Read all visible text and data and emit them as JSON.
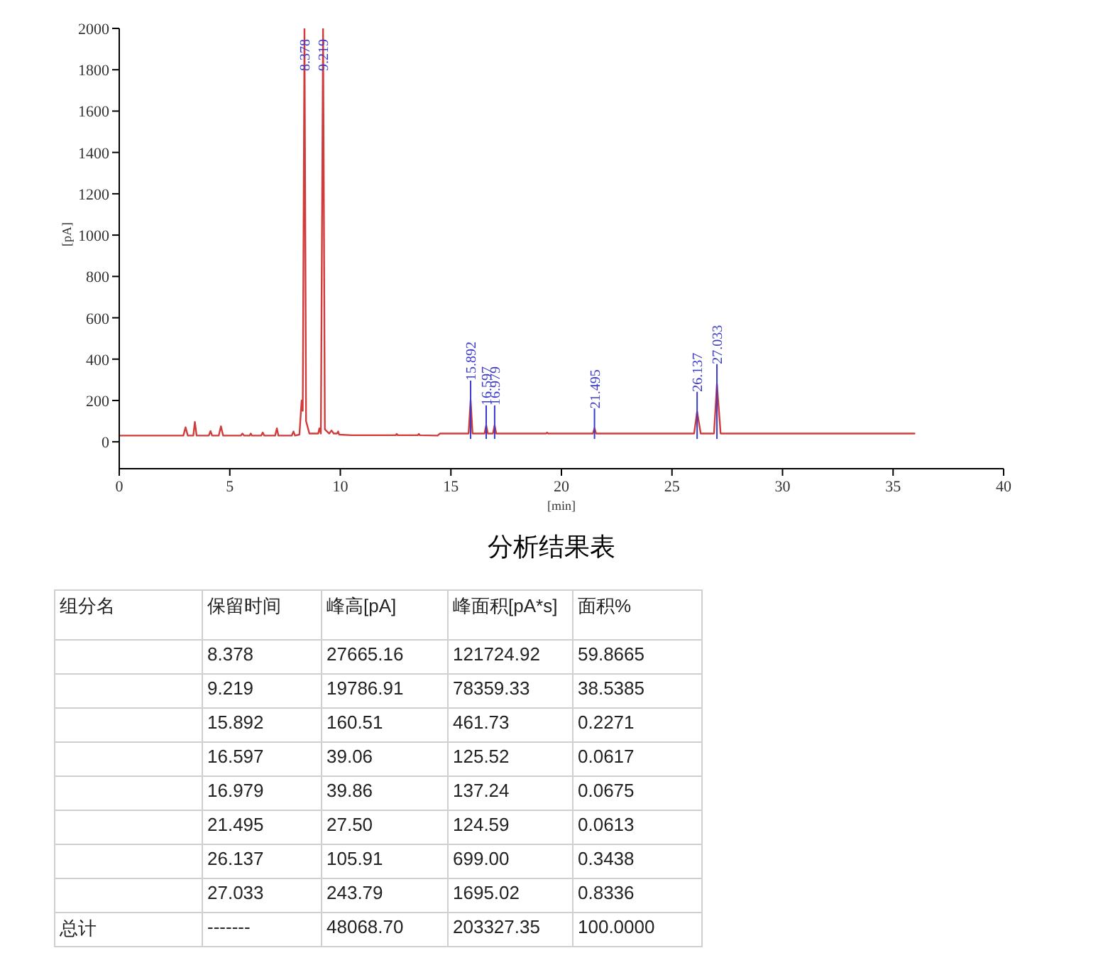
{
  "chart_data": [
    {
      "type": "line",
      "xlabel": "[min]",
      "ylabel": "[pA]",
      "xlim": [
        0,
        40
      ],
      "ylim": [
        -130,
        2000
      ],
      "xticks": [
        0,
        5,
        10,
        15,
        20,
        25,
        30,
        35,
        40
      ],
      "yticks": [
        0,
        200,
        400,
        600,
        800,
        1000,
        1200,
        1400,
        1600,
        1800,
        2000
      ],
      "grid": false,
      "marker": "none",
      "line_style": "solid",
      "series": [
        {
          "color": "#d03c3c",
          "x": [
            0,
            2.9,
            3.0,
            3.1,
            3.35,
            3.42,
            3.5,
            4.05,
            4.13,
            4.2,
            4.5,
            4.6,
            4.7,
            5.5,
            5.57,
            5.65,
            5.9,
            5.95,
            6.0,
            6.42,
            6.49,
            6.56,
            7.05,
            7.13,
            7.2,
            7.8,
            7.88,
            7.95,
            8.15,
            8.25,
            8.3,
            8.378,
            8.45,
            8.6,
            9.0,
            9.05,
            9.12,
            9.219,
            9.3,
            9.5,
            9.6,
            9.7,
            9.85,
            9.9,
            9.95,
            10.5,
            12.5,
            12.55,
            12.6,
            13.5,
            13.55,
            13.6,
            14.4,
            14.5,
            15.8,
            15.892,
            15.98,
            16.52,
            16.597,
            16.67,
            16.9,
            16.979,
            17.05,
            19.3,
            19.35,
            19.4,
            21.42,
            21.495,
            21.57,
            26.0,
            26.137,
            26.3,
            26.9,
            27.033,
            27.2,
            36
          ],
          "values": [
            30,
            30,
            70,
            30,
            30,
            96,
            30,
            30,
            52,
            30,
            30,
            75,
            30,
            30,
            40,
            30,
            30,
            40,
            30,
            30,
            45,
            30,
            30,
            65,
            30,
            30,
            50,
            30,
            35,
            200,
            150,
            2000,
            100,
            40,
            40,
            65,
            40,
            2000,
            60,
            40,
            55,
            40,
            40,
            50,
            35,
            32,
            32,
            38,
            32,
            32,
            38,
            32,
            30,
            40,
            40,
            200,
            40,
            40,
            80,
            40,
            40,
            80,
            40,
            40,
            45,
            40,
            40,
            65,
            40,
            40,
            146,
            40,
            40,
            280,
            40,
            40
          ]
        }
      ],
      "annotations": [
        {
          "text": "8.378",
          "x": 8.378,
          "y": 2000
        },
        {
          "text": "9.219",
          "x": 9.219,
          "y": 2000
        },
        {
          "text": "15.892",
          "x": 15.892,
          "y": 200
        },
        {
          "text": "16.597",
          "x": 16.597,
          "y": 80
        },
        {
          "text": "16.979",
          "x": 16.979,
          "y": 80
        },
        {
          "text": "21.495",
          "x": 21.495,
          "y": 65
        },
        {
          "text": "26.137",
          "x": 26.137,
          "y": 146
        },
        {
          "text": "27.033",
          "x": 27.033,
          "y": 280
        }
      ]
    },
    {
      "type": "other",
      "title": "分析结果表",
      "annotations": [
        "组分名",
        "保留时间",
        "峰高[pA]",
        "峰面积[pA*s]",
        "面积%",
        null,
        "8.378",
        "27665.16",
        "121724.92",
        "59.8665",
        null,
        "9.219",
        "19786.91",
        "78359.33",
        "38.5385",
        null,
        "15.892",
        "160.51",
        "461.73",
        "0.2271",
        null,
        "16.597",
        "39.06",
        "125.52",
        "0.0617",
        null,
        "16.979",
        "39.86",
        "137.24",
        "0.0675",
        null,
        "21.495",
        "27.50",
        "124.59",
        "0.0613",
        null,
        "26.137",
        "105.91",
        "699.00",
        "0.3438",
        null,
        "27.033",
        "243.79",
        "1695.02",
        "0.8336",
        "总计",
        "-------",
        "48068.70",
        "203327.35",
        "100.0000"
      ]
    }
  ]
}
